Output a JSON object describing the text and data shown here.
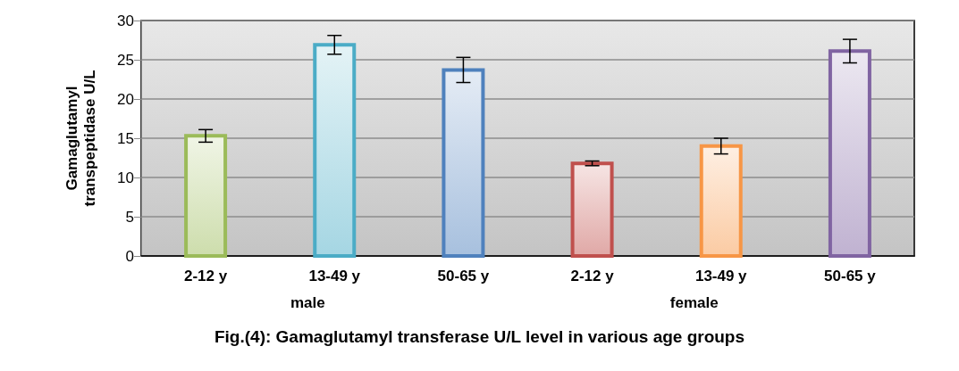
{
  "chart_data": {
    "type": "bar",
    "title": "Fig.(4): Gamaglutamyl transferase U/L level in various age groups",
    "ylabel": "Gamaglutamyl transpeptidase U/L",
    "categories": [
      "2-12 y",
      "13-49 y",
      "50-65 y",
      "2-12 y",
      "13-49 y",
      "50-65 y"
    ],
    "values": [
      15.3,
      26.9,
      23.7,
      11.8,
      14.0,
      26.1
    ],
    "errors": [
      0.8,
      1.2,
      1.6,
      0.3,
      1.0,
      1.5
    ],
    "colors": [
      "#9bbb59",
      "#4bacc6",
      "#4f81bd",
      "#c0504d",
      "#f79646",
      "#8064a2"
    ],
    "annotations": [
      "male",
      "female"
    ],
    "ylim": [
      0,
      30
    ],
    "yticks": [
      0,
      5,
      10,
      15,
      20,
      25,
      30
    ],
    "grid": "y"
  }
}
